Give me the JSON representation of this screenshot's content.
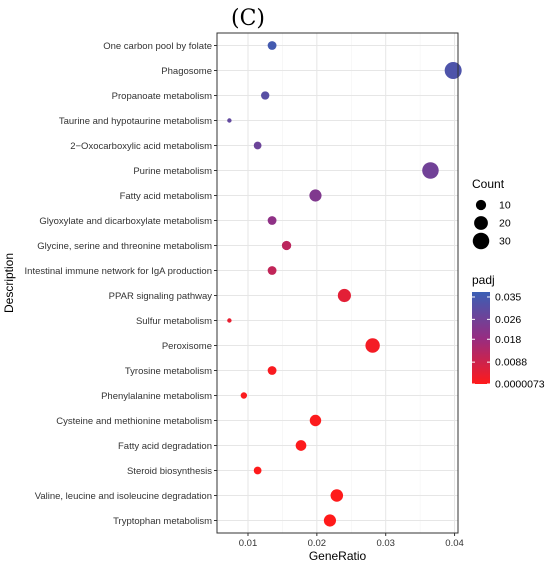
{
  "chart_data": {
    "type": "scatter",
    "panel_label": "(C)",
    "xlabel": "GeneRatio",
    "ylabel": "Description",
    "xlim": [
      0.0055,
      0.0405
    ],
    "xticks": [
      0.01,
      0.02,
      0.03,
      0.04
    ],
    "xtick_labels": [
      "0.01",
      "0.02",
      "0.03",
      "0.04"
    ],
    "grid": true,
    "legend_placement": "right",
    "size_legend": {
      "title": "Count",
      "values": [
        10,
        20,
        30
      ],
      "labels": [
        "10",
        "20",
        "30"
      ],
      "range": [
        4,
        40
      ]
    },
    "color_legend": {
      "title": "padj",
      "low_color": "#ff1a1a",
      "high_color": "#3a5fb5",
      "range": [
        7.3e-06,
        0.037
      ],
      "tick_values": [
        0.035,
        0.026,
        0.018,
        0.0088,
        7.3e-06
      ],
      "tick_labels": [
        "0.035",
        "0.026",
        "0.018",
        "0.0088",
        "0.0000073"
      ]
    },
    "points": [
      {
        "term": "One carbon pool by folate",
        "gene_ratio": 0.0135,
        "count": 7,
        "padj": 0.035
      },
      {
        "term": "Phagosome",
        "gene_ratio": 0.0398,
        "count": 32,
        "padj": 0.033
      },
      {
        "term": "Propanoate metabolism",
        "gene_ratio": 0.0125,
        "count": 6,
        "padj": 0.031
      },
      {
        "term": "Taurine and hypotaurine metabolism",
        "gene_ratio": 0.0073,
        "count": 1,
        "padj": 0.029
      },
      {
        "term": "2−Oxocarboxylic acid metabolism",
        "gene_ratio": 0.0114,
        "count": 5,
        "padj": 0.027
      },
      {
        "term": "Purine metabolism",
        "gene_ratio": 0.0365,
        "count": 30,
        "padj": 0.026
      },
      {
        "term": "Fatty acid metabolism",
        "gene_ratio": 0.0198,
        "count": 15,
        "padj": 0.023
      },
      {
        "term": "Glyoxylate and dicarboxylate metabolism",
        "gene_ratio": 0.0135,
        "count": 7,
        "padj": 0.02
      },
      {
        "term": "Glycine, serine and threonine metabolism",
        "gene_ratio": 0.0156,
        "count": 8,
        "padj": 0.012
      },
      {
        "term": "Intestinal immune network for IgA production",
        "gene_ratio": 0.0135,
        "count": 7,
        "padj": 0.011
      },
      {
        "term": "PPAR signaling pathway",
        "gene_ratio": 0.024,
        "count": 18,
        "padj": 0.005
      },
      {
        "term": "Sulfur metabolism",
        "gene_ratio": 0.0073,
        "count": 1,
        "padj": 0.004
      },
      {
        "term": "Peroxisome",
        "gene_ratio": 0.0281,
        "count": 22,
        "padj": 0.002
      },
      {
        "term": "Tyrosine metabolism",
        "gene_ratio": 0.0135,
        "count": 7,
        "padj": 0.001
      },
      {
        "term": "Phenylalanine metabolism",
        "gene_ratio": 0.0094,
        "count": 3,
        "padj": 0.0008
      },
      {
        "term": "Cysteine and methionine metabolism",
        "gene_ratio": 0.0198,
        "count": 13,
        "padj": 0.0005
      },
      {
        "term": "Fatty acid degradation",
        "gene_ratio": 0.0177,
        "count": 11,
        "padj": 0.0003
      },
      {
        "term": "Steroid biosynthesis",
        "gene_ratio": 0.0114,
        "count": 5,
        "padj": 0.0002
      },
      {
        "term": "Valine, leucine and isoleucine degradation",
        "gene_ratio": 0.0229,
        "count": 16,
        "padj": 0.0001
      },
      {
        "term": "Tryptophan metabolism",
        "gene_ratio": 0.0219,
        "count": 15,
        "padj": 7.3e-06
      }
    ]
  }
}
